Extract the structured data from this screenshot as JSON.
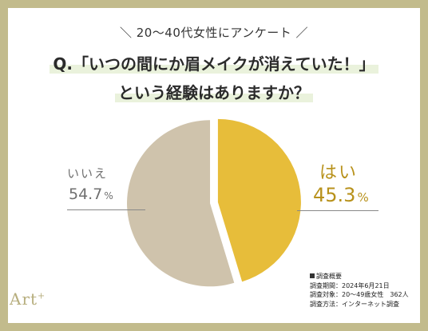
{
  "header": {
    "survey_tag": "＼ 20〜40代女性にアンケート ／",
    "question_line1": "Q.「いつの間にか眉メイクが消えていた！」",
    "question_line2": "という経験はありますか？"
  },
  "chart_data": {
    "type": "pie",
    "title": "Q.「いつの間にか眉メイクが消えていた！」という経験はありますか？",
    "unit": "%",
    "slices": [
      {
        "label": "はい",
        "value": 45.3,
        "color": "#e7bd3a"
      },
      {
        "label": "いいえ",
        "value": 54.7,
        "color": "#cfc3ac"
      }
    ]
  },
  "labels": {
    "yes_label": "はい",
    "yes_value": "45.3",
    "no_label": "いいえ",
    "no_value": "54.7",
    "percent_sign": "%"
  },
  "notes": {
    "heading": "調査概要",
    "period": "調査期間：2024年6月21日",
    "target": "調査対象：20〜49歳女性　362人",
    "method": "調査方法：インターネット調査"
  },
  "logo": {
    "text": "Art",
    "mark": "+"
  },
  "colors": {
    "frame": "#c2bb8c",
    "yes": "#e7bd3a",
    "no": "#cfc3ac",
    "yes_text": "#b8921c"
  }
}
